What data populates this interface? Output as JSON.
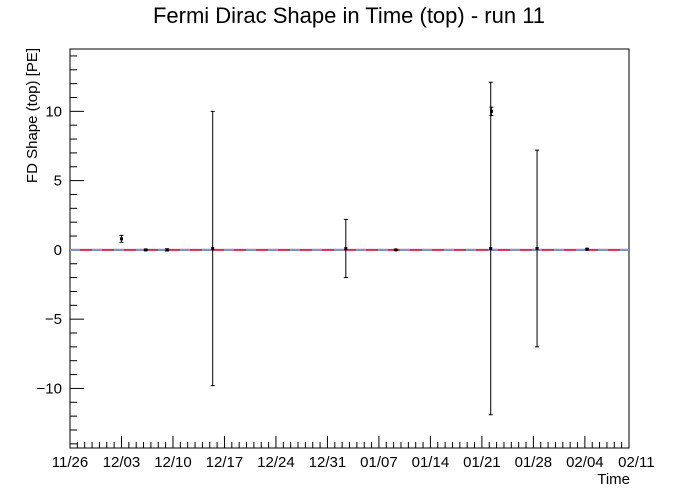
{
  "chart_data": {
    "type": "scatter",
    "title": "Fermi Dirac Shape in Time (top) - run 11",
    "xlabel": "Time",
    "ylabel": "FD Shape (top) [PE]",
    "x_ticks": [
      "11/26",
      "12/03",
      "12/10",
      "12/17",
      "12/24",
      "12/31",
      "01/07",
      "01/14",
      "01/21",
      "01/28",
      "02/04",
      "02/11"
    ],
    "x_range_days": [
      0,
      76
    ],
    "ylim": [
      -14.3,
      14.5
    ],
    "y_ticks": [
      -10,
      -5,
      0,
      5,
      10
    ],
    "grid": false,
    "reference_line": {
      "y": 0,
      "color": "#d62a55",
      "dash_color": "#6f9bd6"
    },
    "points": [
      {
        "x": 7,
        "y": 0.8,
        "yerr_low": 0.25,
        "yerr_high": 0.25
      },
      {
        "x": 10.3,
        "y": 0.0,
        "yerr_low": 0.05,
        "yerr_high": 0.05
      },
      {
        "x": 13.2,
        "y": 0.0,
        "yerr_low": 0.08,
        "yerr_high": 0.08
      },
      {
        "x": 19.4,
        "y": 0.1,
        "yerr_low": 9.9,
        "yerr_high": 9.9
      },
      {
        "x": 37.5,
        "y": 0.1,
        "yerr_low": 2.1,
        "yerr_high": 2.1
      },
      {
        "x": 44.3,
        "y": 0.0,
        "yerr_low": 0.04,
        "yerr_high": 0.04
      },
      {
        "x": 57.2,
        "y": 0.1,
        "yerr_low": 12.0,
        "yerr_high": 12.0
      },
      {
        "x": 57.3,
        "y": 10.0,
        "yerr_low": 0.3,
        "yerr_high": 0.3
      },
      {
        "x": 63.5,
        "y": 0.1,
        "yerr_low": 7.1,
        "yerr_high": 7.1
      },
      {
        "x": 70.3,
        "y": 0.05,
        "yerr_low": 0.06,
        "yerr_high": 0.06
      }
    ]
  }
}
